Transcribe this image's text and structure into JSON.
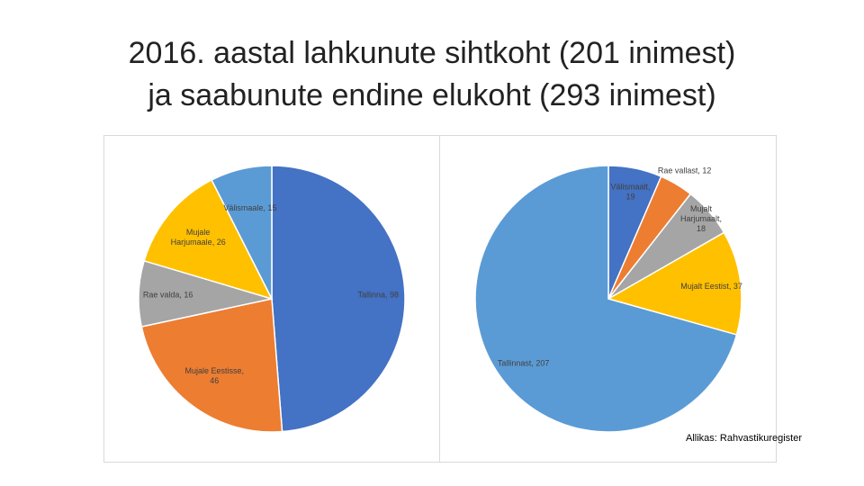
{
  "title": [
    "2016. aastal lahkunute sihtkoht (201 inimest)",
    "ja saabunute endine elukoht (293 inimest)"
  ],
  "chart_data": [
    {
      "type": "pie",
      "values": [
        98,
        46,
        16,
        26,
        15
      ],
      "value_labels": [
        "Tallinna, 98",
        "Mujale Eestisse,\n46",
        "Rae valda, 16",
        "Mujale\nHarjumaale, 26",
        "Välismaale, 15"
      ],
      "colors": [
        "#4472c4",
        "#ed7d31",
        "#a5a5a5",
        "#ffc000",
        "#5b9bd5"
      ]
    },
    {
      "type": "pie",
      "values": [
        19,
        12,
        18,
        37,
        207
      ],
      "value_labels": [
        "Välismaalt,\n19",
        "Rae vallast, 12",
        "Mujalt\nHarjumaalt,\n18",
        "Mujalt Eestist, 37",
        "Tallinnast, 207"
      ],
      "colors": [
        "#4472c4",
        "#ed7d31",
        "#a5a5a5",
        "#ffc000",
        "#5b9bd5"
      ]
    }
  ],
  "source": "Allikas: Rahvastikuregister"
}
